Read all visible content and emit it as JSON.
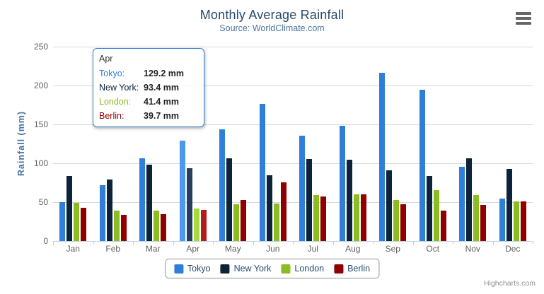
{
  "chart_data": {
    "type": "bar",
    "title": "Monthly Average Rainfall",
    "subtitle": "Source: WorldClimate.com",
    "xlabel": "",
    "ylabel": "Rainfall (mm)",
    "ylim": [
      0,
      250
    ],
    "yticks": [
      0,
      50,
      100,
      150,
      200,
      250
    ],
    "grid": true,
    "legend_position": "bottom-center",
    "categories": [
      "Jan",
      "Feb",
      "Mar",
      "Apr",
      "May",
      "Jun",
      "Jul",
      "Aug",
      "Sep",
      "Oct",
      "Nov",
      "Dec"
    ],
    "series": [
      {
        "name": "Tokyo",
        "color": "#2f7ed8",
        "values": [
          49.9,
          71.5,
          106.4,
          129.2,
          144.0,
          176.0,
          135.6,
          148.5,
          216.4,
          194.1,
          95.6,
          54.4
        ]
      },
      {
        "name": "New York",
        "color": "#0d233a",
        "values": [
          83.6,
          78.8,
          98.5,
          93.4,
          106.0,
          84.5,
          105.0,
          104.3,
          91.2,
          83.5,
          106.6,
          92.3
        ]
      },
      {
        "name": "London",
        "color": "#8bbc21",
        "values": [
          48.9,
          38.8,
          39.3,
          41.4,
          47.0,
          48.3,
          59.0,
          59.6,
          52.4,
          65.2,
          59.3,
          51.2
        ]
      },
      {
        "name": "Berlin",
        "color": "#910000",
        "values": [
          42.4,
          33.2,
          34.5,
          39.7,
          52.6,
          75.5,
          57.4,
          60.4,
          47.6,
          39.1,
          46.8,
          51.1
        ]
      }
    ],
    "hover": {
      "category": "Apr",
      "colors": [
        "#4d99f2",
        "#24405c",
        "#a6d93a",
        "#b21c1c"
      ]
    }
  },
  "tooltip": {
    "header": "Apr",
    "border_color": "#2f7ed8",
    "rows": [
      {
        "label": "Tokyo:",
        "value": "129.2 mm",
        "color": "#2f7ed8"
      },
      {
        "label": "New York:",
        "value": "93.4 mm",
        "color": "#0d233a"
      },
      {
        "label": "London:",
        "value": "41.4 mm",
        "color": "#8bbc21"
      },
      {
        "label": "Berlin:",
        "value": "39.7 mm",
        "color": "#910000"
      }
    ]
  },
  "credits": {
    "text": "Highcharts.com"
  },
  "icons": {
    "context_menu": "hamburger-icon"
  },
  "theme": {
    "title_color": "#274b6d",
    "subtitle_color": "#4d759e",
    "axis_label_color": "#606060",
    "y_title_color": "#4572a7",
    "grid_color": "#d8d8d8",
    "axis_line_color": "#c0d0e0",
    "legend_border_color": "#909090",
    "legend_text_color": "#274b6d",
    "credits_color": "#909090"
  }
}
